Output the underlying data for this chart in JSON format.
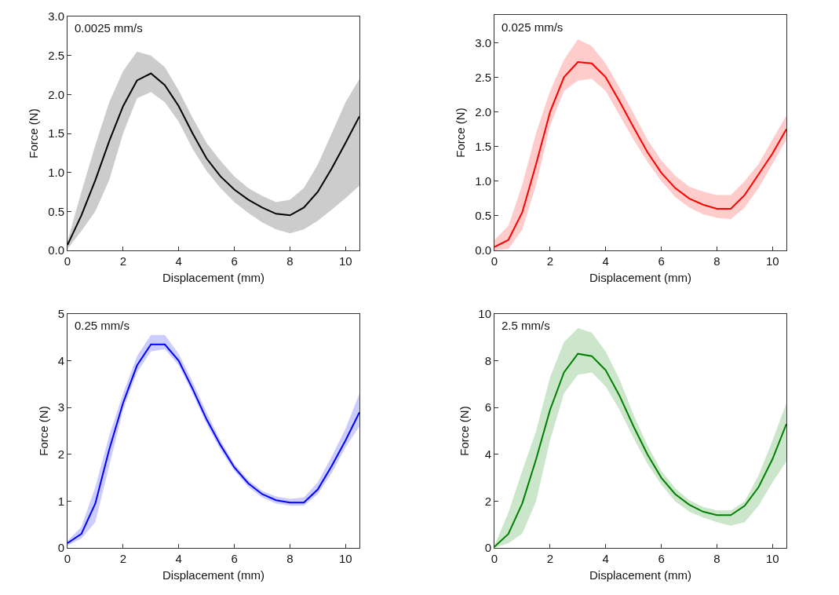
{
  "chart_data": [
    {
      "type": "line",
      "xlabel": "Displacement (mm)",
      "ylabel": "Force (N)",
      "annotations": [
        "0.0025 mm/s"
      ],
      "xlim": [
        0,
        10.5
      ],
      "xticks": [
        0,
        2,
        4,
        6,
        8,
        10
      ],
      "ylim": [
        0,
        3
      ],
      "yticks": [
        {
          "value": 0,
          "label": "0.0"
        },
        0.5,
        {
          "value": 1,
          "label": "1.0"
        },
        1.5,
        {
          "value": 2,
          "label": "2.0"
        },
        2.5,
        {
          "value": 3,
          "label": "3.0"
        }
      ],
      "grid": false,
      "marker": "none",
      "line_style": "solid",
      "x": [
        0,
        0.5,
        1,
        1.5,
        2,
        2.5,
        3,
        3.5,
        4,
        4.5,
        5,
        5.5,
        6,
        6.5,
        7,
        7.5,
        8,
        8.5,
        9,
        9.5,
        10,
        10.5
      ],
      "series": [
        {
          "color": "#000000",
          "values": [
            0.07,
            0.45,
            0.9,
            1.4,
            1.85,
            2.18,
            2.27,
            2.12,
            1.85,
            1.5,
            1.18,
            0.95,
            0.78,
            0.65,
            0.55,
            0.47,
            0.45,
            0.55,
            0.75,
            1.05,
            1.38,
            1.72
          ],
          "lower": [
            0.02,
            0.25,
            0.5,
            0.9,
            1.5,
            1.95,
            2.03,
            1.9,
            1.65,
            1.3,
            1.02,
            0.8,
            0.62,
            0.48,
            0.36,
            0.27,
            0.22,
            0.27,
            0.38,
            0.52,
            0.67,
            0.83
          ],
          "upper": [
            0.12,
            0.75,
            1.35,
            1.9,
            2.3,
            2.55,
            2.5,
            2.35,
            2.05,
            1.7,
            1.38,
            1.15,
            0.95,
            0.8,
            0.7,
            0.62,
            0.65,
            0.8,
            1.1,
            1.5,
            1.9,
            2.2
          ]
        }
      ]
    },
    {
      "type": "line",
      "xlabel": "Displacement (mm)",
      "ylabel": "Force (N)",
      "annotations": [
        "0.025 mm/s"
      ],
      "xlim": [
        0,
        10.5
      ],
      "xticks": [
        0,
        2,
        4,
        6,
        8,
        10
      ],
      "ylim": [
        0,
        3.4
      ],
      "yticks": [
        {
          "value": 0,
          "label": "0.0"
        },
        0.5,
        {
          "value": 1,
          "label": "1.0"
        },
        1.5,
        {
          "value": 2,
          "label": "2.0"
        },
        2.5,
        {
          "value": 3,
          "label": "3.0"
        }
      ],
      "grid": false,
      "marker": "none",
      "line_style": "solid",
      "x": [
        0,
        0.5,
        1,
        1.5,
        2,
        2.5,
        3,
        3.5,
        4,
        4.5,
        5,
        5.5,
        6,
        6.5,
        7,
        7.5,
        8,
        8.5,
        9,
        9.5,
        10,
        10.5
      ],
      "series": [
        {
          "color": "#ff0000",
          "values": [
            0.05,
            0.15,
            0.55,
            1.25,
            2.0,
            2.5,
            2.72,
            2.7,
            2.5,
            2.15,
            1.78,
            1.42,
            1.12,
            0.9,
            0.75,
            0.66,
            0.6,
            0.6,
            0.8,
            1.1,
            1.4,
            1.75
          ],
          "lower": [
            0.0,
            0.02,
            0.3,
            0.95,
            1.8,
            2.3,
            2.45,
            2.48,
            2.3,
            1.95,
            1.6,
            1.28,
            1.0,
            0.77,
            0.62,
            0.52,
            0.47,
            0.45,
            0.62,
            0.9,
            1.25,
            1.6
          ],
          "upper": [
            0.15,
            0.35,
            0.95,
            1.7,
            2.3,
            2.75,
            3.05,
            2.95,
            2.7,
            2.35,
            1.98,
            1.6,
            1.3,
            1.08,
            0.92,
            0.85,
            0.8,
            0.8,
            1.0,
            1.25,
            1.6,
            1.95
          ]
        }
      ]
    },
    {
      "type": "line",
      "xlabel": "Displacement (mm)",
      "ylabel": "Force (N)",
      "annotations": [
        "0.25 mm/s"
      ],
      "xlim": [
        0,
        10.5
      ],
      "xticks": [
        0,
        2,
        4,
        6,
        8,
        10
      ],
      "ylim": [
        0,
        5
      ],
      "yticks": [
        0,
        1,
        2,
        3,
        4,
        5
      ],
      "grid": false,
      "marker": "none",
      "line_style": "solid",
      "x": [
        0,
        0.5,
        1,
        1.5,
        2,
        2.5,
        3,
        3.5,
        4,
        4.5,
        5,
        5.5,
        6,
        6.5,
        7,
        7.5,
        8,
        8.5,
        9,
        9.5,
        10,
        10.5
      ],
      "series": [
        {
          "color": "#0000ff",
          "values": [
            0.1,
            0.3,
            0.95,
            2.1,
            3.1,
            3.9,
            4.35,
            4.35,
            4.0,
            3.4,
            2.75,
            2.2,
            1.72,
            1.38,
            1.15,
            1.02,
            0.97,
            0.97,
            1.25,
            1.75,
            2.3,
            2.9
          ],
          "lower": [
            0.05,
            0.2,
            0.55,
            1.75,
            2.95,
            3.75,
            4.2,
            4.25,
            3.9,
            3.3,
            2.65,
            2.1,
            1.65,
            1.3,
            1.08,
            0.95,
            0.9,
            0.9,
            1.15,
            1.6,
            2.15,
            2.6
          ],
          "upper": [
            0.15,
            0.45,
            1.3,
            2.4,
            3.3,
            4.1,
            4.55,
            4.55,
            4.15,
            3.55,
            2.9,
            2.3,
            1.8,
            1.45,
            1.22,
            1.1,
            1.05,
            1.08,
            1.4,
            1.95,
            2.55,
            3.3
          ]
        }
      ]
    },
    {
      "type": "line",
      "xlabel": "Displacement (mm)",
      "ylabel": "Force (N)",
      "annotations": [
        "2.5 mm/s"
      ],
      "xlim": [
        0,
        10.5
      ],
      "xticks": [
        0,
        2,
        4,
        6,
        8,
        10
      ],
      "ylim": [
        0,
        10
      ],
      "yticks": [
        0,
        2,
        4,
        6,
        8,
        10
      ],
      "grid": false,
      "marker": "none",
      "line_style": "solid",
      "x": [
        0,
        0.5,
        1,
        1.5,
        2,
        2.5,
        3,
        3.5,
        4,
        4.5,
        5,
        5.5,
        6,
        6.5,
        7,
        7.5,
        8,
        8.5,
        9,
        9.5,
        10,
        10.5
      ],
      "series": [
        {
          "color": "#008000",
          "values": [
            0.05,
            0.6,
            1.9,
            3.8,
            5.9,
            7.5,
            8.3,
            8.2,
            7.6,
            6.5,
            5.2,
            4.0,
            3.0,
            2.3,
            1.85,
            1.55,
            1.4,
            1.4,
            1.8,
            2.6,
            3.8,
            5.3
          ],
          "lower": [
            0.0,
            0.2,
            0.6,
            2.0,
            4.6,
            6.6,
            7.4,
            7.5,
            6.9,
            5.9,
            4.7,
            3.6,
            2.7,
            2.0,
            1.55,
            1.3,
            1.1,
            0.95,
            1.1,
            1.8,
            2.8,
            3.7
          ],
          "upper": [
            0.1,
            1.5,
            3.3,
            5.0,
            7.3,
            8.8,
            9.4,
            9.2,
            8.4,
            7.2,
            5.7,
            4.4,
            3.3,
            2.55,
            2.05,
            1.75,
            1.6,
            1.6,
            2.0,
            3.1,
            4.6,
            6.2
          ]
        }
      ]
    }
  ]
}
